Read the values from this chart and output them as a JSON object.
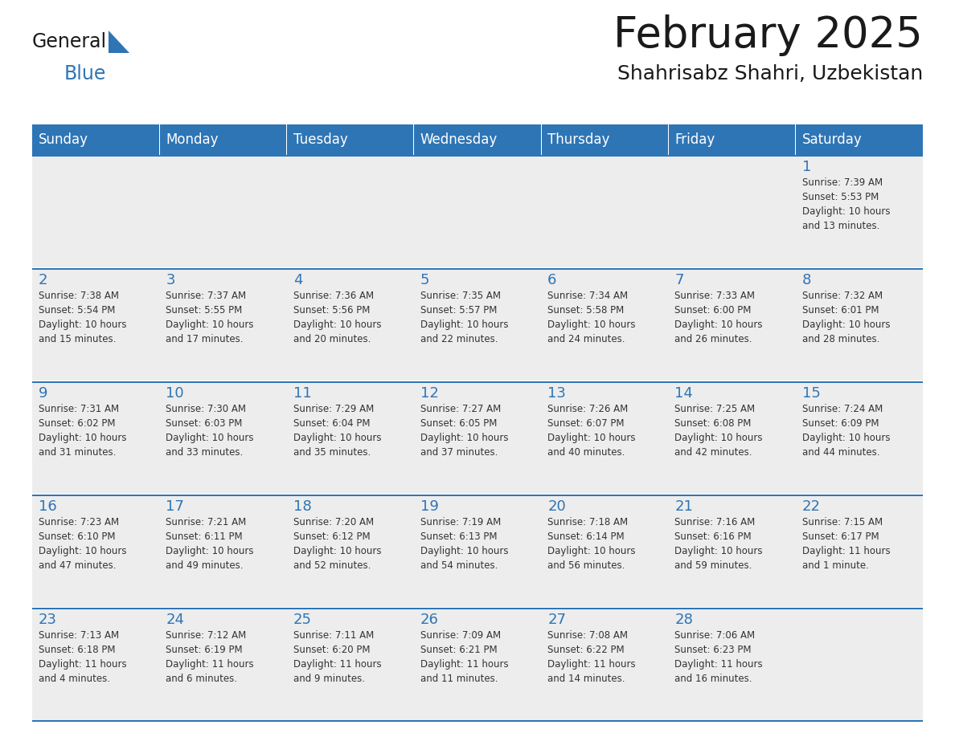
{
  "title": "February 2025",
  "subtitle": "Shahrisabz Shahri, Uzbekistan",
  "days_of_week": [
    "Sunday",
    "Monday",
    "Tuesday",
    "Wednesday",
    "Thursday",
    "Friday",
    "Saturday"
  ],
  "header_bg": "#2E75B6",
  "header_text": "#FFFFFF",
  "cell_bg": "#EDEDED",
  "border_color": "#2E75B6",
  "separator_color": "#FFFFFF",
  "day_num_color": "#2E75B6",
  "text_color": "#333333",
  "logo_general_color": "#1a1a1a",
  "logo_blue_color": "#2E75B6",
  "calendar_data": [
    [
      null,
      null,
      null,
      null,
      null,
      null,
      1
    ],
    [
      2,
      3,
      4,
      5,
      6,
      7,
      8
    ],
    [
      9,
      10,
      11,
      12,
      13,
      14,
      15
    ],
    [
      16,
      17,
      18,
      19,
      20,
      21,
      22
    ],
    [
      23,
      24,
      25,
      26,
      27,
      28,
      null
    ]
  ],
  "sunrise_data": {
    "1": "Sunrise: 7:39 AM\nSunset: 5:53 PM\nDaylight: 10 hours\nand 13 minutes.",
    "2": "Sunrise: 7:38 AM\nSunset: 5:54 PM\nDaylight: 10 hours\nand 15 minutes.",
    "3": "Sunrise: 7:37 AM\nSunset: 5:55 PM\nDaylight: 10 hours\nand 17 minutes.",
    "4": "Sunrise: 7:36 AM\nSunset: 5:56 PM\nDaylight: 10 hours\nand 20 minutes.",
    "5": "Sunrise: 7:35 AM\nSunset: 5:57 PM\nDaylight: 10 hours\nand 22 minutes.",
    "6": "Sunrise: 7:34 AM\nSunset: 5:58 PM\nDaylight: 10 hours\nand 24 minutes.",
    "7": "Sunrise: 7:33 AM\nSunset: 6:00 PM\nDaylight: 10 hours\nand 26 minutes.",
    "8": "Sunrise: 7:32 AM\nSunset: 6:01 PM\nDaylight: 10 hours\nand 28 minutes.",
    "9": "Sunrise: 7:31 AM\nSunset: 6:02 PM\nDaylight: 10 hours\nand 31 minutes.",
    "10": "Sunrise: 7:30 AM\nSunset: 6:03 PM\nDaylight: 10 hours\nand 33 minutes.",
    "11": "Sunrise: 7:29 AM\nSunset: 6:04 PM\nDaylight: 10 hours\nand 35 minutes.",
    "12": "Sunrise: 7:27 AM\nSunset: 6:05 PM\nDaylight: 10 hours\nand 37 minutes.",
    "13": "Sunrise: 7:26 AM\nSunset: 6:07 PM\nDaylight: 10 hours\nand 40 minutes.",
    "14": "Sunrise: 7:25 AM\nSunset: 6:08 PM\nDaylight: 10 hours\nand 42 minutes.",
    "15": "Sunrise: 7:24 AM\nSunset: 6:09 PM\nDaylight: 10 hours\nand 44 minutes.",
    "16": "Sunrise: 7:23 AM\nSunset: 6:10 PM\nDaylight: 10 hours\nand 47 minutes.",
    "17": "Sunrise: 7:21 AM\nSunset: 6:11 PM\nDaylight: 10 hours\nand 49 minutes.",
    "18": "Sunrise: 7:20 AM\nSunset: 6:12 PM\nDaylight: 10 hours\nand 52 minutes.",
    "19": "Sunrise: 7:19 AM\nSunset: 6:13 PM\nDaylight: 10 hours\nand 54 minutes.",
    "20": "Sunrise: 7:18 AM\nSunset: 6:14 PM\nDaylight: 10 hours\nand 56 minutes.",
    "21": "Sunrise: 7:16 AM\nSunset: 6:16 PM\nDaylight: 10 hours\nand 59 minutes.",
    "22": "Sunrise: 7:15 AM\nSunset: 6:17 PM\nDaylight: 11 hours\nand 1 minute.",
    "23": "Sunrise: 7:13 AM\nSunset: 6:18 PM\nDaylight: 11 hours\nand 4 minutes.",
    "24": "Sunrise: 7:12 AM\nSunset: 6:19 PM\nDaylight: 11 hours\nand 6 minutes.",
    "25": "Sunrise: 7:11 AM\nSunset: 6:20 PM\nDaylight: 11 hours\nand 9 minutes.",
    "26": "Sunrise: 7:09 AM\nSunset: 6:21 PM\nDaylight: 11 hours\nand 11 minutes.",
    "27": "Sunrise: 7:08 AM\nSunset: 6:22 PM\nDaylight: 11 hours\nand 14 minutes.",
    "28": "Sunrise: 7:06 AM\nSunset: 6:23 PM\nDaylight: 11 hours\nand 16 minutes."
  },
  "fig_width": 11.88,
  "fig_height": 9.18,
  "title_fontsize": 38,
  "subtitle_fontsize": 18,
  "header_fontsize": 12,
  "day_num_fontsize": 13,
  "info_fontsize": 8.5
}
